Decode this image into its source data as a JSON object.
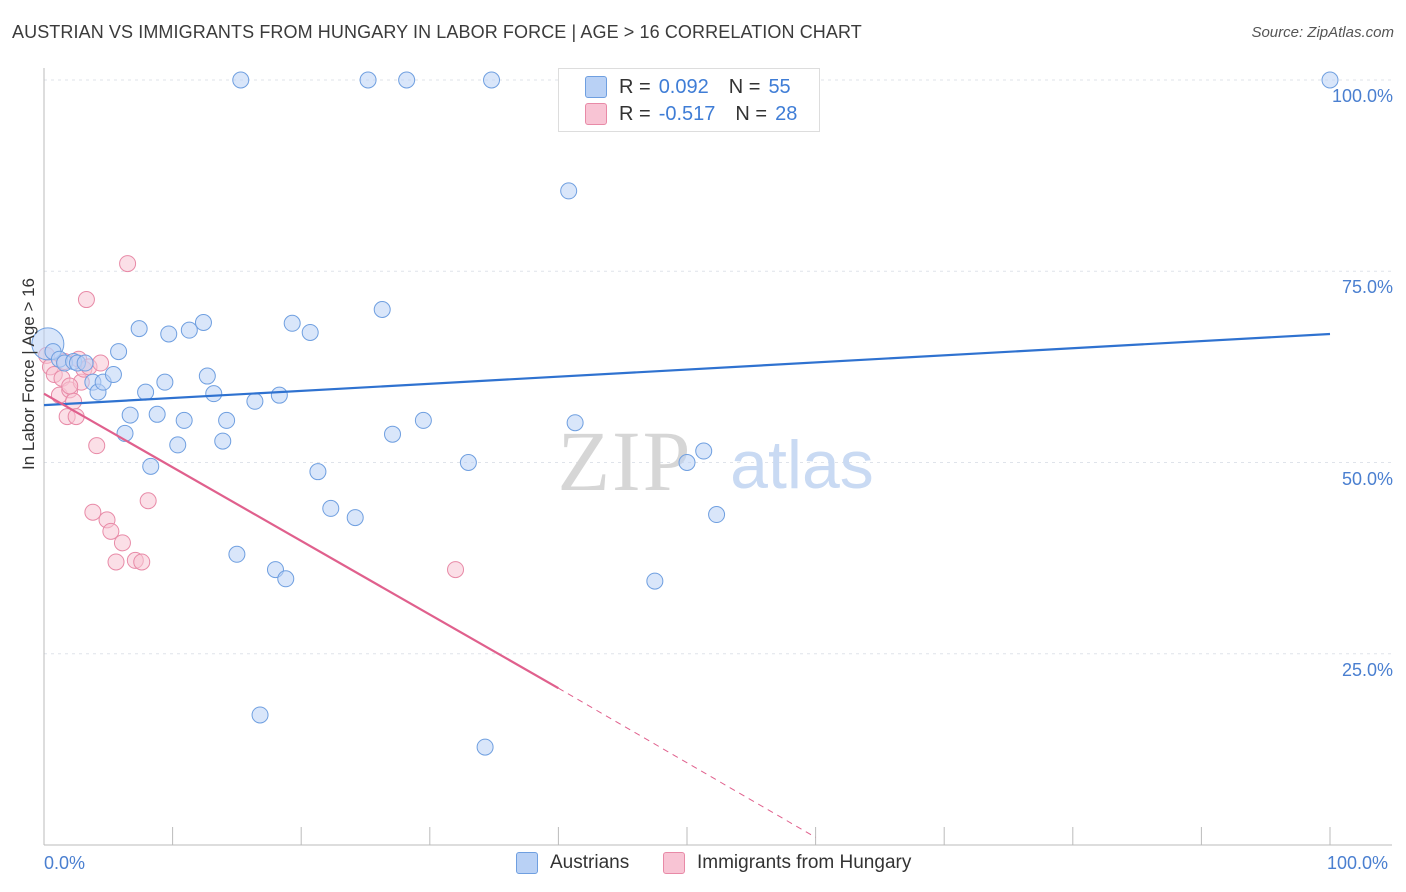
{
  "header": {
    "title": "AUSTRIAN VS IMMIGRANTS FROM HUNGARY IN LABOR FORCE | AGE > 16 CORRELATION CHART",
    "source": "Source: ZipAtlas.com"
  },
  "watermark": {
    "zip": "ZIP",
    "atlas": "atlas"
  },
  "legend": {
    "r_label": "R =",
    "n_label": "N =",
    "series": [
      {
        "name": "Austrians",
        "r": "0.092",
        "n": "55",
        "fill": "#b9d1f5",
        "stroke": "#6f9fe0"
      },
      {
        "name": "Immigrants from Hungary",
        "r": "-0.517",
        "n": "28",
        "fill": "#f8c4d4",
        "stroke": "#e88aa7"
      }
    ]
  },
  "colors": {
    "blue_line": "#2f72d0",
    "pink_line": "#e0608d",
    "grid": "#dfe3ea",
    "axis_label": "#4a7fd0"
  },
  "chart_data": {
    "type": "scatter",
    "title": "AUSTRIAN VS IMMIGRANTS FROM HUNGARY IN LABOR FORCE | AGE > 16 CORRELATION CHART",
    "xlabel": "",
    "ylabel": "In Labor Force | Age > 16",
    "xlim": [
      0,
      100
    ],
    "ylim": [
      0,
      100
    ],
    "x_tick_labels": [
      "0.0%",
      "100.0%"
    ],
    "y_ticks": [
      {
        "value": 25,
        "label": "25.0%"
      },
      {
        "value": 50,
        "label": "50.0%"
      },
      {
        "value": 75,
        "label": "75.0%"
      },
      {
        "value": 100,
        "label": "100.0%"
      }
    ],
    "series": [
      {
        "name": "Austrians",
        "points": [
          [
            0.3,
            65.5
          ],
          [
            0.7,
            64.5
          ],
          [
            1.2,
            63.5
          ],
          [
            1.6,
            63.0
          ],
          [
            2.3,
            63.2
          ],
          [
            2.6,
            63.0
          ],
          [
            3.2,
            63.0
          ],
          [
            3.8,
            60.5
          ],
          [
            4.2,
            59.2
          ],
          [
            4.6,
            60.5
          ],
          [
            5.4,
            61.5
          ],
          [
            5.8,
            64.5
          ],
          [
            6.3,
            53.8
          ],
          [
            6.7,
            56.2
          ],
          [
            7.4,
            67.5
          ],
          [
            7.9,
            59.2
          ],
          [
            8.3,
            49.5
          ],
          [
            8.8,
            56.3
          ],
          [
            9.4,
            60.5
          ],
          [
            9.7,
            66.8
          ],
          [
            10.4,
            52.3
          ],
          [
            10.9,
            55.5
          ],
          [
            11.3,
            67.3
          ],
          [
            12.4,
            68.3
          ],
          [
            12.7,
            61.3
          ],
          [
            13.2,
            59.0
          ],
          [
            13.9,
            52.8
          ],
          [
            14.2,
            55.5
          ],
          [
            15.0,
            38.0
          ],
          [
            15.3,
            100.0
          ],
          [
            16.4,
            58.0
          ],
          [
            16.8,
            17.0
          ],
          [
            18.0,
            36.0
          ],
          [
            18.3,
            58.8
          ],
          [
            18.8,
            34.8
          ],
          [
            19.3,
            68.2
          ],
          [
            20.7,
            67.0
          ],
          [
            21.3,
            48.8
          ],
          [
            22.3,
            44.0
          ],
          [
            24.2,
            42.8
          ],
          [
            25.2,
            100.0
          ],
          [
            26.3,
            70.0
          ],
          [
            27.1,
            53.7
          ],
          [
            28.2,
            100.0
          ],
          [
            29.5,
            55.5
          ],
          [
            33.0,
            50.0
          ],
          [
            34.3,
            12.8
          ],
          [
            34.8,
            100.0
          ],
          [
            40.8,
            85.5
          ],
          [
            41.3,
            55.2
          ],
          [
            47.5,
            34.5
          ],
          [
            50.0,
            50.0
          ],
          [
            51.3,
            51.5
          ],
          [
            52.3,
            43.2
          ],
          [
            100.0,
            100.0
          ]
        ],
        "trend": {
          "x": [
            0,
            100
          ],
          "y": [
            57.5,
            66.8
          ]
        }
      },
      {
        "name": "Immigrants from Hungary",
        "points": [
          [
            0.2,
            64.0
          ],
          [
            0.5,
            62.5
          ],
          [
            0.8,
            61.5
          ],
          [
            1.2,
            58.8
          ],
          [
            1.4,
            61.0
          ],
          [
            1.6,
            63.2
          ],
          [
            1.8,
            56.0
          ],
          [
            2.0,
            59.5
          ],
          [
            2.3,
            58.0
          ],
          [
            2.5,
            56.0
          ],
          [
            2.7,
            63.5
          ],
          [
            2.9,
            60.5
          ],
          [
            3.1,
            62.2
          ],
          [
            3.3,
            71.3
          ],
          [
            3.5,
            62.5
          ],
          [
            3.8,
            43.5
          ],
          [
            4.1,
            52.2
          ],
          [
            4.4,
            63.0
          ],
          [
            4.9,
            42.5
          ],
          [
            5.2,
            41.0
          ],
          [
            5.6,
            37.0
          ],
          [
            6.1,
            39.5
          ],
          [
            6.5,
            76.0
          ],
          [
            7.1,
            37.2
          ],
          [
            7.6,
            37.0
          ],
          [
            8.1,
            45.0
          ],
          [
            32.0,
            36.0
          ],
          [
            2.0,
            60.0
          ]
        ],
        "trend_solid": {
          "x": [
            0,
            40
          ],
          "y": [
            59.0,
            20.5
          ]
        },
        "trend_dashed": {
          "x": [
            40,
            60
          ],
          "y": [
            20.5,
            1.0
          ]
        }
      }
    ]
  }
}
